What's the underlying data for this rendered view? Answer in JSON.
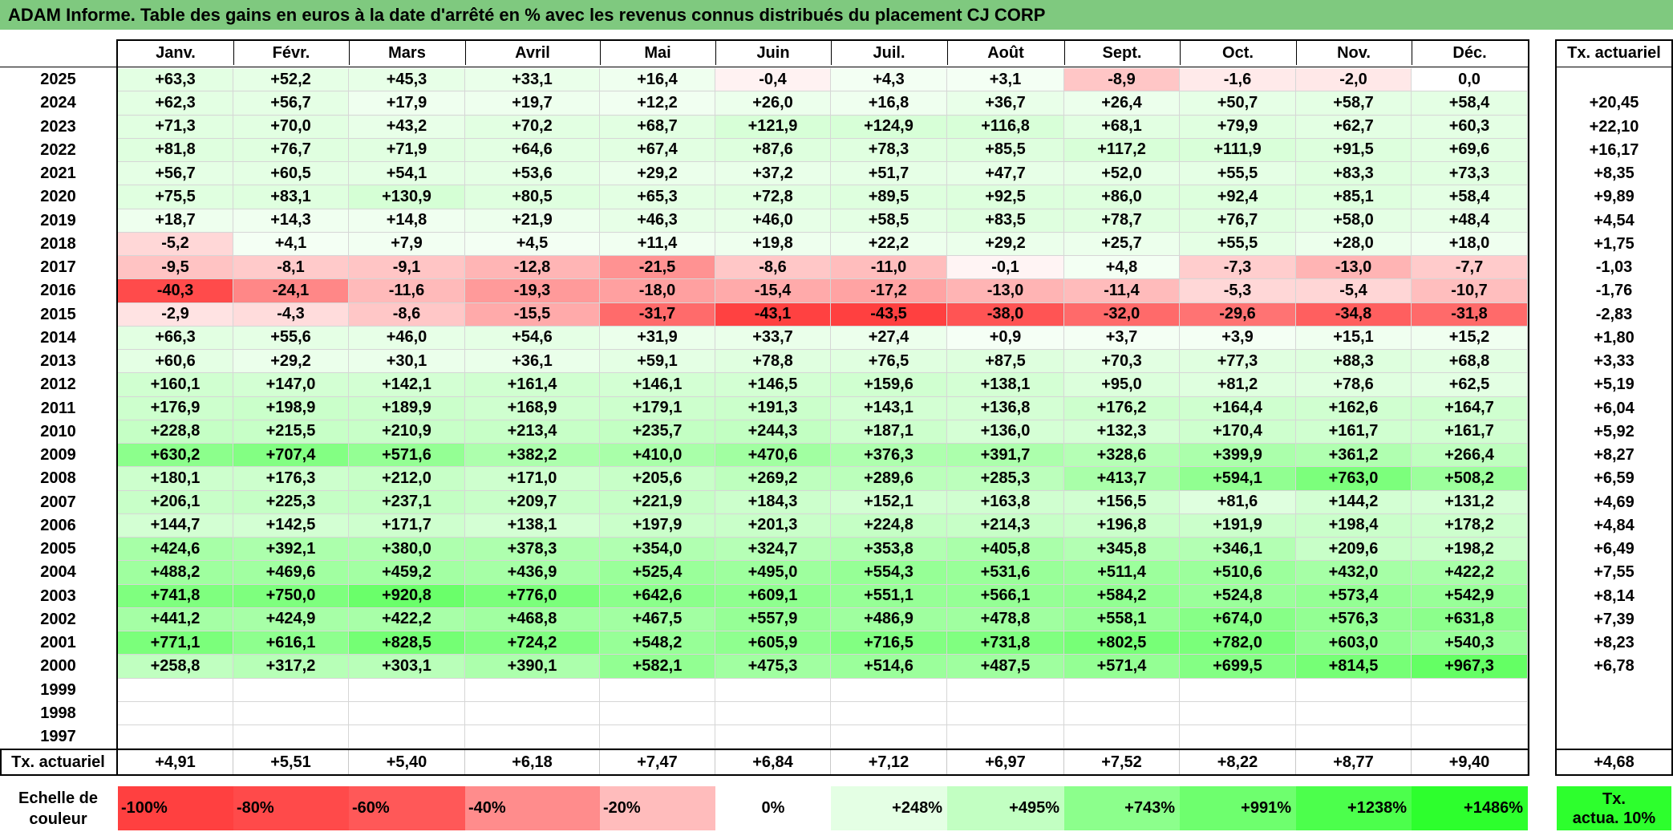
{
  "title": "ADAM Informe. Table des gains en euros à la date d'arrêté en % avec les revenus connus distribués du placement CJ CORP",
  "chart_data": {
    "type": "heatmap",
    "columns": [
      "Janv.",
      "Févr.",
      "Mars",
      "Avril",
      "Mai",
      "Juin",
      "Juil.",
      "Août",
      "Sept.",
      "Oct.",
      "Nov.",
      "Déc."
    ],
    "right_header": "Tx. actuariel",
    "rows": [
      {
        "year": "2025",
        "values": [
          "+63,3",
          "+52,2",
          "+45,3",
          "+33,1",
          "+16,4",
          "-0,4",
          "+4,3",
          "+3,1",
          "-8,9",
          "-1,6",
          "-2,0",
          "0,0"
        ],
        "tx": ""
      },
      {
        "year": "2024",
        "values": [
          "+62,3",
          "+56,7",
          "+17,9",
          "+19,7",
          "+12,2",
          "+26,0",
          "+16,8",
          "+36,7",
          "+26,4",
          "+50,7",
          "+58,7",
          "+58,4"
        ],
        "tx": "+20,45"
      },
      {
        "year": "2023",
        "values": [
          "+71,3",
          "+70,0",
          "+43,2",
          "+70,2",
          "+68,7",
          "+121,9",
          "+124,9",
          "+116,8",
          "+68,1",
          "+79,9",
          "+62,7",
          "+60,3"
        ],
        "tx": "+22,10"
      },
      {
        "year": "2022",
        "values": [
          "+81,8",
          "+76,7",
          "+71,9",
          "+64,6",
          "+67,4",
          "+87,6",
          "+78,3",
          "+85,5",
          "+117,2",
          "+111,9",
          "+91,5",
          "+69,6"
        ],
        "tx": "+16,17"
      },
      {
        "year": "2021",
        "values": [
          "+56,7",
          "+60,5",
          "+54,1",
          "+53,6",
          "+29,2",
          "+37,2",
          "+51,7",
          "+47,7",
          "+52,0",
          "+55,5",
          "+83,3",
          "+73,3"
        ],
        "tx": "+8,35"
      },
      {
        "year": "2020",
        "values": [
          "+75,5",
          "+83,1",
          "+130,9",
          "+80,5",
          "+65,3",
          "+72,8",
          "+89,5",
          "+92,5",
          "+86,0",
          "+92,4",
          "+85,1",
          "+58,4"
        ],
        "tx": "+9,89"
      },
      {
        "year": "2019",
        "values": [
          "+18,7",
          "+14,3",
          "+14,8",
          "+21,9",
          "+46,3",
          "+46,0",
          "+58,5",
          "+83,5",
          "+78,7",
          "+76,7",
          "+58,0",
          "+48,4"
        ],
        "tx": "+4,54"
      },
      {
        "year": "2018",
        "values": [
          "-5,2",
          "+4,1",
          "+7,9",
          "+4,5",
          "+11,4",
          "+19,8",
          "+22,2",
          "+29,2",
          "+25,7",
          "+55,5",
          "+28,0",
          "+18,0"
        ],
        "tx": "+1,75"
      },
      {
        "year": "2017",
        "values": [
          "-9,5",
          "-8,1",
          "-9,1",
          "-12,8",
          "-21,5",
          "-8,6",
          "-11,0",
          "-0,1",
          "+4,8",
          "-7,3",
          "-13,0",
          "-7,7"
        ],
        "tx": "-1,03"
      },
      {
        "year": "2016",
        "values": [
          "-40,3",
          "-24,1",
          "-11,6",
          "-19,3",
          "-18,0",
          "-15,4",
          "-17,2",
          "-13,0",
          "-11,4",
          "-5,3",
          "-5,4",
          "-10,7"
        ],
        "tx": "-1,76"
      },
      {
        "year": "2015",
        "values": [
          "-2,9",
          "-4,3",
          "-8,6",
          "-15,5",
          "-31,7",
          "-43,1",
          "-43,5",
          "-38,0",
          "-32,0",
          "-29,6",
          "-34,8",
          "-31,8"
        ],
        "tx": "-2,83"
      },
      {
        "year": "2014",
        "values": [
          "+66,3",
          "+55,6",
          "+46,0",
          "+54,6",
          "+31,9",
          "+33,7",
          "+27,4",
          "+0,9",
          "+3,7",
          "+3,9",
          "+15,1",
          "+15,2"
        ],
        "tx": "+1,80"
      },
      {
        "year": "2013",
        "values": [
          "+60,6",
          "+29,2",
          "+30,1",
          "+36,1",
          "+59,1",
          "+78,8",
          "+76,5",
          "+87,5",
          "+70,3",
          "+77,3",
          "+88,3",
          "+68,8"
        ],
        "tx": "+3,33"
      },
      {
        "year": "2012",
        "values": [
          "+160,1",
          "+147,0",
          "+142,1",
          "+161,4",
          "+146,1",
          "+146,5",
          "+159,6",
          "+138,1",
          "+95,0",
          "+81,2",
          "+78,6",
          "+62,5"
        ],
        "tx": "+5,19"
      },
      {
        "year": "2011",
        "values": [
          "+176,9",
          "+198,9",
          "+189,9",
          "+168,9",
          "+179,1",
          "+191,3",
          "+143,1",
          "+136,8",
          "+176,2",
          "+164,4",
          "+162,6",
          "+164,7"
        ],
        "tx": "+6,04"
      },
      {
        "year": "2010",
        "values": [
          "+228,8",
          "+215,5",
          "+210,9",
          "+213,4",
          "+235,7",
          "+244,3",
          "+187,1",
          "+136,0",
          "+132,3",
          "+170,4",
          "+161,7",
          "+161,7"
        ],
        "tx": "+5,92"
      },
      {
        "year": "2009",
        "values": [
          "+630,2",
          "+707,4",
          "+571,6",
          "+382,2",
          "+410,0",
          "+470,6",
          "+376,3",
          "+391,7",
          "+328,6",
          "+399,9",
          "+361,2",
          "+266,4"
        ],
        "tx": "+8,27"
      },
      {
        "year": "2008",
        "values": [
          "+180,1",
          "+176,3",
          "+212,0",
          "+171,0",
          "+205,6",
          "+269,2",
          "+289,6",
          "+285,3",
          "+413,7",
          "+594,1",
          "+763,0",
          "+508,2"
        ],
        "tx": "+6,59"
      },
      {
        "year": "2007",
        "values": [
          "+206,1",
          "+225,3",
          "+237,1",
          "+209,7",
          "+221,9",
          "+184,3",
          "+152,1",
          "+163,8",
          "+156,5",
          "+81,6",
          "+144,2",
          "+131,2"
        ],
        "tx": "+4,69"
      },
      {
        "year": "2006",
        "values": [
          "+144,7",
          "+142,5",
          "+171,7",
          "+138,1",
          "+197,9",
          "+201,3",
          "+224,8",
          "+214,3",
          "+196,8",
          "+191,9",
          "+198,4",
          "+178,2"
        ],
        "tx": "+4,84"
      },
      {
        "year": "2005",
        "values": [
          "+424,6",
          "+392,1",
          "+380,0",
          "+378,3",
          "+354,0",
          "+324,7",
          "+353,8",
          "+405,8",
          "+345,8",
          "+346,1",
          "+209,6",
          "+198,2"
        ],
        "tx": "+6,49"
      },
      {
        "year": "2004",
        "values": [
          "+488,2",
          "+469,6",
          "+459,2",
          "+436,9",
          "+525,4",
          "+495,0",
          "+554,3",
          "+531,6",
          "+511,4",
          "+510,6",
          "+432,0",
          "+422,2"
        ],
        "tx": "+7,55"
      },
      {
        "year": "2003",
        "values": [
          "+741,8",
          "+750,0",
          "+920,8",
          "+776,0",
          "+642,6",
          "+609,1",
          "+551,1",
          "+566,1",
          "+584,2",
          "+524,8",
          "+573,4",
          "+542,9"
        ],
        "tx": "+8,14"
      },
      {
        "year": "2002",
        "values": [
          "+441,2",
          "+424,9",
          "+422,2",
          "+468,8",
          "+467,5",
          "+557,9",
          "+486,9",
          "+478,8",
          "+558,1",
          "+674,0",
          "+576,3",
          "+631,8"
        ],
        "tx": "+7,39"
      },
      {
        "year": "2001",
        "values": [
          "+771,1",
          "+616,1",
          "+828,5",
          "+724,2",
          "+548,2",
          "+605,9",
          "+716,5",
          "+731,8",
          "+802,5",
          "+782,0",
          "+603,0",
          "+540,3"
        ],
        "tx": "+8,23"
      },
      {
        "year": "2000",
        "values": [
          "+258,8",
          "+317,2",
          "+303,1",
          "+390,1",
          "+582,1",
          "+475,3",
          "+514,6",
          "+487,5",
          "+571,4",
          "+699,5",
          "+814,5",
          "+967,3"
        ],
        "tx": "+6,78"
      },
      {
        "year": "1999",
        "values": [
          "",
          "",
          "",
          "",
          "",
          "",
          "",
          "",
          "",
          "",
          "",
          ""
        ],
        "tx": ""
      },
      {
        "year": "1998",
        "values": [
          "",
          "",
          "",
          "",
          "",
          "",
          "",
          "",
          "",
          "",
          "",
          ""
        ],
        "tx": ""
      },
      {
        "year": "1997",
        "values": [
          "",
          "",
          "",
          "",
          "",
          "",
          "",
          "",
          "",
          "",
          "",
          ""
        ],
        "tx": ""
      }
    ],
    "footer": {
      "label": "Tx. actuariel",
      "values": [
        "+4,91",
        "+5,51",
        "+5,40",
        "+6,18",
        "+7,47",
        "+6,84",
        "+7,12",
        "+6,97",
        "+7,52",
        "+8,22",
        "+8,77",
        "+9,40"
      ],
      "total": "+4,68"
    },
    "scale": {
      "label_line1": "Echelle de",
      "label_line2": "couleur",
      "steps": [
        "-100%",
        "-80%",
        "-60%",
        "-40%",
        "-20%",
        "0%",
        "+248%",
        "+495%",
        "+743%",
        "+991%",
        "+1238%",
        "+1486%"
      ],
      "step_colors": [
        "#ff4040",
        "#ff4a4a",
        "#ff5858",
        "#ff8c8c",
        "#ffbcbc",
        "#ffffff",
        "#e4ffe4",
        "#c2ffc2",
        "#8cff8c",
        "#6eff6e",
        "#4cff4c",
        "#2dff2d"
      ],
      "right_line1": "Tx.",
      "right_line2": "actua. 10%",
      "right_color": "#2dff2d"
    },
    "colors": {
      "title_bg": "#7fc97f",
      "negative_full": "#ff4040",
      "positive_full": "#2dff2d"
    },
    "color_domain": {
      "negative_min": -43.5,
      "positive_max": 1486
    }
  }
}
